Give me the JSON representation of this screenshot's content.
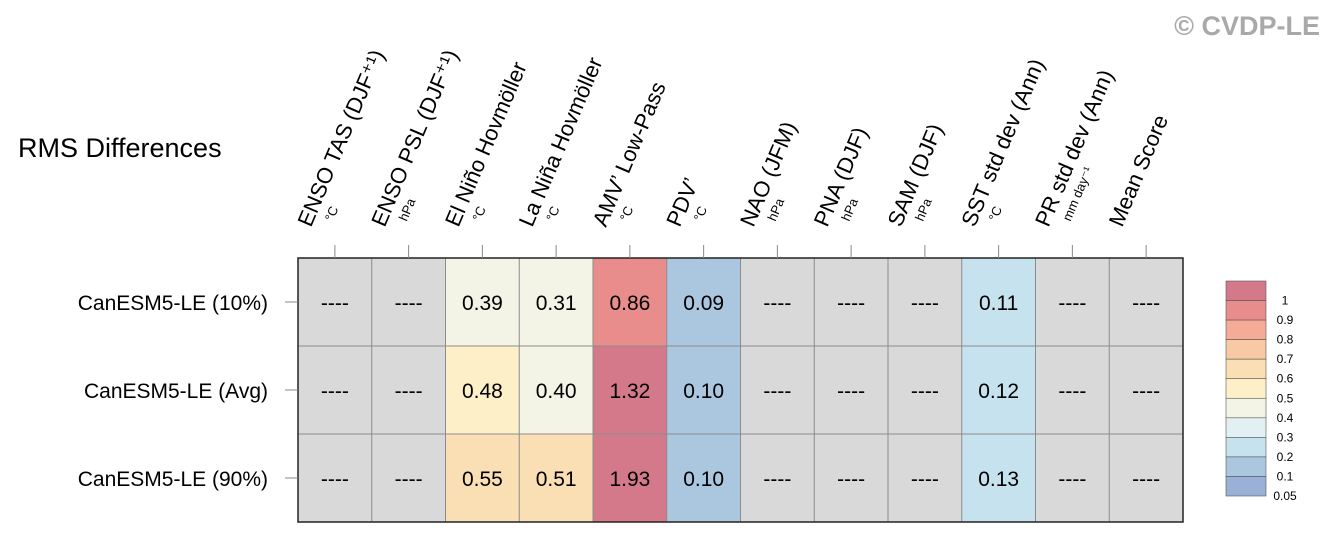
{
  "watermark": "© CVDP-LE",
  "chart_data": {
    "type": "table",
    "title": "RMS Differences",
    "columns": [
      {
        "label": "ENSO TAS (DJF⁺¹)",
        "unit": "°C"
      },
      {
        "label": "ENSO PSL (DJF⁺¹)",
        "unit": "hPa"
      },
      {
        "label": "El Niño Hovmöller",
        "unit": "°C"
      },
      {
        "label": "La Niña Hovmöller",
        "unit": "°C"
      },
      {
        "label": "AMV’ Low-Pass",
        "unit": "°C"
      },
      {
        "label": "PDV’",
        "unit": "°C"
      },
      {
        "label": "NAO (JFM)",
        "unit": "hPa"
      },
      {
        "label": "PNA (DJF)",
        "unit": "hPa"
      },
      {
        "label": "SAM (DJF)",
        "unit": "hPa"
      },
      {
        "label": "SST std dev (Ann)",
        "unit": "°C"
      },
      {
        "label": "PR std dev (Ann)",
        "unit": "mm day⁻¹"
      },
      {
        "label": "Mean Score",
        "unit": ""
      }
    ],
    "rows": [
      {
        "name": "CanESM5-LE (10%)",
        "values": [
          "----",
          "----",
          "0.39",
          "0.31",
          "0.86",
          "0.09",
          "----",
          "----",
          "----",
          "0.11",
          "----",
          "----"
        ]
      },
      {
        "name": "CanESM5-LE (Avg)",
        "values": [
          "----",
          "----",
          "0.48",
          "0.40",
          "1.32",
          "0.10",
          "----",
          "----",
          "----",
          "0.12",
          "----",
          "----"
        ]
      },
      {
        "name": "CanESM5-LE (90%)",
        "values": [
          "----",
          "----",
          "0.55",
          "0.51",
          "1.93",
          "0.10",
          "----",
          "----",
          "----",
          "0.13",
          "----",
          "----"
        ]
      }
    ],
    "missing_color": "#d9d9d9",
    "colorbar": {
      "levels": [
        0.05,
        0.1,
        0.2,
        0.3,
        0.4,
        0.5,
        0.6,
        0.7,
        0.8,
        0.9,
        1
      ],
      "labels": [
        "1",
        "0.9",
        "0.8",
        "0.7",
        "0.6",
        "0.5",
        "0.4",
        "0.3",
        "0.2",
        "0.1",
        "0.05"
      ],
      "colors": [
        "#d4798a",
        "#e88c8c",
        "#f5ab98",
        "#f9c8a4",
        "#fbdfb4",
        "#fdf0c8",
        "#f3f3e6",
        "#e2eff3",
        "#c6e2ee",
        "#abc7df",
        "#9ab0d6"
      ]
    }
  }
}
